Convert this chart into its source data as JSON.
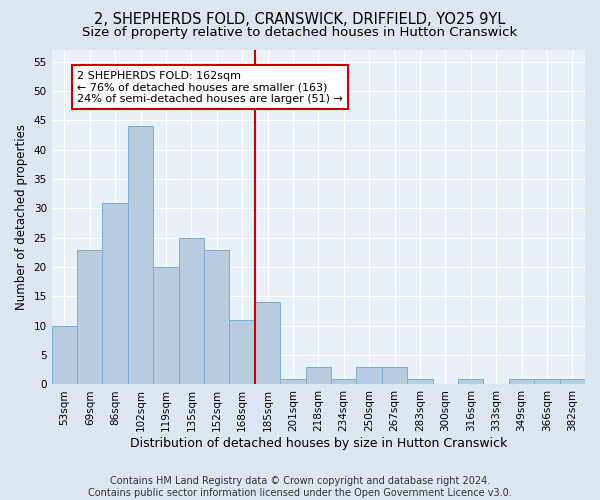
{
  "title": "2, SHEPHERDS FOLD, CRANSWICK, DRIFFIELD, YO25 9YL",
  "subtitle": "Size of property relative to detached houses in Hutton Cranswick",
  "xlabel": "Distribution of detached houses by size in Hutton Cranswick",
  "ylabel": "Number of detached properties",
  "bin_labels": [
    "53sqm",
    "69sqm",
    "86sqm",
    "102sqm",
    "119sqm",
    "135sqm",
    "152sqm",
    "168sqm",
    "185sqm",
    "201sqm",
    "218sqm",
    "234sqm",
    "250sqm",
    "267sqm",
    "283sqm",
    "300sqm",
    "316sqm",
    "333sqm",
    "349sqm",
    "366sqm",
    "382sqm"
  ],
  "bar_heights": [
    10,
    23,
    31,
    44,
    20,
    25,
    23,
    11,
    14,
    1,
    3,
    1,
    3,
    3,
    1,
    0,
    1,
    0,
    1,
    1,
    1
  ],
  "bar_color": "#b8ccdf",
  "bar_edge_color": "#7aaed0",
  "vline_x": 7.5,
  "vline_color": "#cc0000",
  "annotation_text": "2 SHEPHERDS FOLD: 162sqm\n← 76% of detached houses are smaller (163)\n24% of semi-detached houses are larger (51) →",
  "annotation_box_color": "#ffffff",
  "annotation_box_edge": "#cc0000",
  "ylim": [
    0,
    57
  ],
  "yticks": [
    0,
    5,
    10,
    15,
    20,
    25,
    30,
    35,
    40,
    45,
    50,
    55
  ],
  "footer1": "Contains HM Land Registry data © Crown copyright and database right 2024.",
  "footer2": "Contains public sector information licensed under the Open Government Licence v3.0.",
  "bg_color": "#dce6f0",
  "plot_bg_color": "#eaf0f8",
  "grid_color": "#ffffff",
  "title_fontsize": 10.5,
  "subtitle_fontsize": 9.5,
  "xlabel_fontsize": 9,
  "ylabel_fontsize": 8.5,
  "tick_fontsize": 7.5,
  "annotation_fontsize": 8,
  "footer_fontsize": 7
}
